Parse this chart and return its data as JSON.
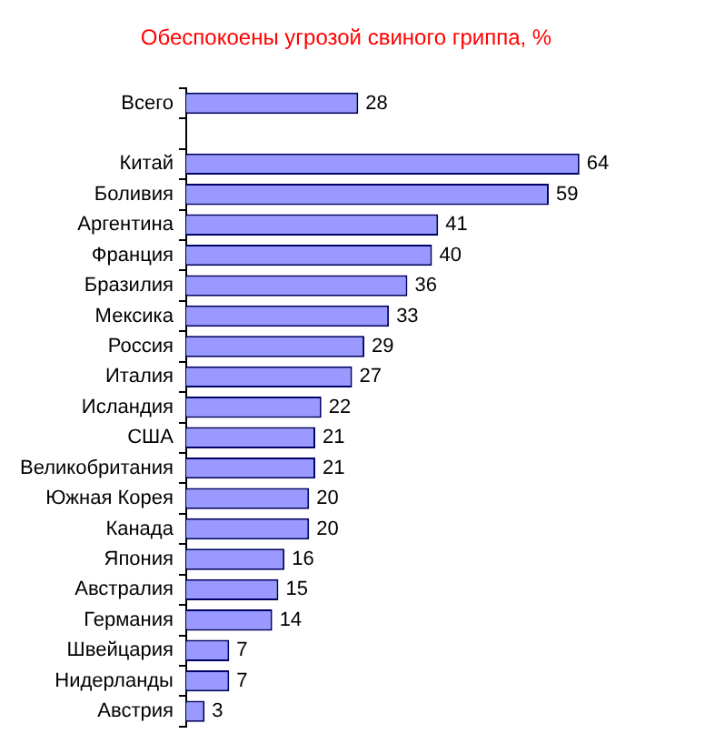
{
  "chart_data": {
    "type": "bar",
    "orientation": "horizontal",
    "title": "Обеспокоены угрозой свиного гриппа, %",
    "categories": [
      "Всего",
      null,
      "Китай",
      "Боливия",
      "Аргентина",
      "Франция",
      "Бразилия",
      "Мексика",
      "Россия",
      "Италия",
      "Исландия",
      "США",
      "Великобритания",
      "Южная Корея",
      "Канада",
      "Япония",
      "Австралия",
      "Германия",
      "Швейцария",
      "Нидерланды",
      "Австрия"
    ],
    "values": [
      28,
      null,
      64,
      59,
      41,
      40,
      36,
      33,
      29,
      27,
      22,
      21,
      21,
      20,
      20,
      16,
      15,
      14,
      7,
      7,
      3
    ],
    "color": "#9999ff",
    "data_labels": true,
    "legend": false,
    "grid": false
  }
}
